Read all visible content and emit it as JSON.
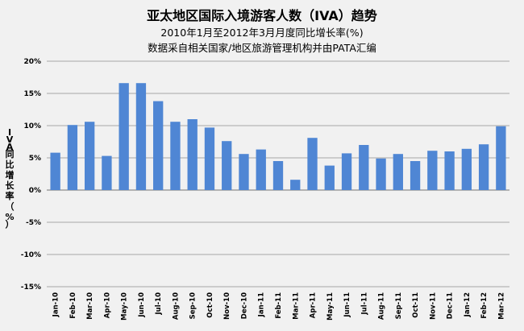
{
  "colors": {
    "bar": "#4f86d4",
    "grid": "#8c8c8c",
    "background": "#f1f1f1"
  },
  "chart_data": {
    "type": "bar",
    "title": "亚太地区国际入境游客人数（IVA）趋势",
    "subtitle": "2010年1月至2012年3月月度同比增长率(%)",
    "source_note": "数据采自相关国家/地区旅游管理机构并由PATA汇编",
    "xlabel": "",
    "ylabel": "IVA同比增长率（%）",
    "ylim": [
      -15,
      20
    ],
    "yticks": [
      20,
      15,
      10,
      5,
      0,
      -5,
      -10,
      -15
    ],
    "ytick_labels": [
      "20%",
      "15%",
      "10%",
      "5%",
      "0%",
      "-5%",
      "-10%",
      "-15%"
    ],
    "grid": true,
    "legend": "none",
    "categories": [
      "Jan-10",
      "Feb-10",
      "Mar-10",
      "Apr-10",
      "May-10",
      "Jun-10",
      "Jul-10",
      "Aug-10",
      "Sep-10",
      "Oct-10",
      "Nov-10",
      "Dec-10",
      "Jan-11",
      "Feb-11",
      "Mar-11",
      "Apr-11",
      "May-11",
      "Jun-11",
      "Jul-11",
      "Aug-11",
      "Sep-11",
      "Oct-11",
      "Nov-11",
      "Dec-11",
      "Jan-12",
      "Feb-12",
      "Mar-12"
    ],
    "values": [
      5.8,
      10.1,
      10.6,
      5.3,
      16.6,
      16.6,
      13.8,
      10.6,
      11.0,
      9.7,
      7.6,
      5.6,
      6.3,
      4.5,
      1.6,
      8.1,
      3.8,
      5.7,
      7.0,
      4.9,
      5.6,
      4.5,
      6.1,
      6.0,
      6.4,
      7.1,
      9.9
    ]
  }
}
